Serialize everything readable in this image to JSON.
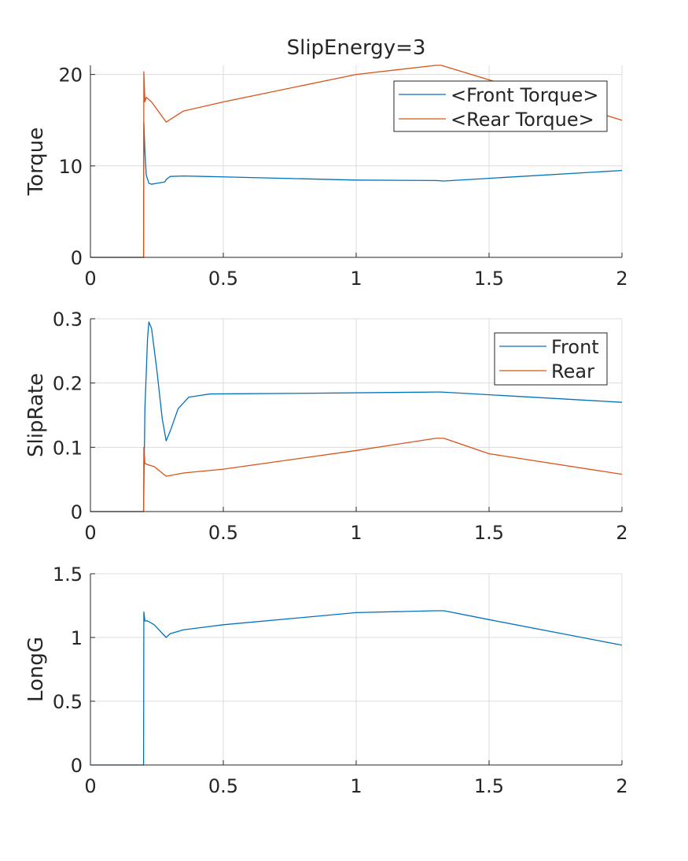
{
  "chart_data": [
    {
      "type": "line",
      "title": "SlipEnergy=3",
      "xlabel": "",
      "ylabel": "Torque",
      "xlim": [
        0,
        2
      ],
      "ylim": [
        0,
        21
      ],
      "xticks": [
        "0",
        "0.5",
        "1",
        "1.5",
        "2"
      ],
      "yticks": [
        "0",
        "10",
        "20"
      ],
      "grid": true,
      "legend_location": "top-right",
      "series": [
        {
          "name": "<Front Torque>",
          "color": "#0072BD",
          "x": [
            0,
            0.2,
            0.201,
            0.205,
            0.21,
            0.22,
            0.23,
            0.25,
            0.28,
            0.285,
            0.3,
            0.35,
            0.5,
            1.0,
            1.3,
            1.33,
            2.0
          ],
          "y": [
            0,
            0,
            14.8,
            11.5,
            9.0,
            8.1,
            8.0,
            8.1,
            8.25,
            8.5,
            8.85,
            8.9,
            8.8,
            8.45,
            8.4,
            8.35,
            9.5
          ]
        },
        {
          "name": "<Rear Torque>",
          "color": "#D95319",
          "x": [
            0,
            0.2,
            0.201,
            0.205,
            0.21,
            0.23,
            0.28,
            0.285,
            0.35,
            0.5,
            1.0,
            1.3,
            1.32,
            2.0
          ],
          "y": [
            0,
            0,
            20.3,
            17.0,
            17.5,
            17.0,
            15.0,
            14.8,
            16.0,
            17.0,
            20.0,
            21.0,
            21.0,
            15.0
          ]
        }
      ]
    },
    {
      "type": "line",
      "title": "",
      "xlabel": "",
      "ylabel": "SlipRate",
      "xlim": [
        0,
        2
      ],
      "ylim": [
        0,
        0.3
      ],
      "xticks": [
        "0",
        "0.5",
        "1",
        "1.5",
        "2"
      ],
      "yticks": [
        "0",
        "0.1",
        "0.2",
        "0.3"
      ],
      "grid": true,
      "legend_location": "top-right",
      "series": [
        {
          "name": "Front",
          "color": "#0072BD",
          "x": [
            0,
            0.2,
            0.205,
            0.215,
            0.22,
            0.23,
            0.25,
            0.27,
            0.285,
            0.3,
            0.33,
            0.37,
            0.45,
            0.8,
            1.3,
            1.32,
            2.0
          ],
          "y": [
            0,
            0,
            0.16,
            0.27,
            0.295,
            0.285,
            0.22,
            0.145,
            0.11,
            0.125,
            0.16,
            0.178,
            0.183,
            0.184,
            0.186,
            0.186,
            0.17
          ]
        },
        {
          "name": "Rear",
          "color": "#D95319",
          "x": [
            0,
            0.2,
            0.201,
            0.205,
            0.215,
            0.24,
            0.285,
            0.35,
            0.5,
            1.0,
            1.3,
            1.33,
            1.5,
            2.0
          ],
          "y": [
            0,
            0,
            0.1,
            0.075,
            0.073,
            0.07,
            0.055,
            0.06,
            0.066,
            0.095,
            0.114,
            0.114,
            0.09,
            0.058
          ]
        }
      ]
    },
    {
      "type": "line",
      "title": "",
      "xlabel": "",
      "ylabel": "LongG",
      "xlim": [
        0,
        2
      ],
      "ylim": [
        0,
        1.5
      ],
      "xticks": [
        "0",
        "0.5",
        "1",
        "1.5",
        "2"
      ],
      "yticks": [
        "0",
        "0.5",
        "1",
        "1.5"
      ],
      "grid": true,
      "legend_location": "none",
      "series": [
        {
          "name": "",
          "color": "#0072BD",
          "x": [
            0,
            0.2,
            0.201,
            0.205,
            0.215,
            0.24,
            0.285,
            0.3,
            0.35,
            0.5,
            1.0,
            1.3,
            1.33,
            1.5,
            2.0
          ],
          "y": [
            0,
            0,
            1.2,
            1.13,
            1.13,
            1.1,
            1.0,
            1.03,
            1.06,
            1.1,
            1.195,
            1.21,
            1.21,
            1.14,
            0.94
          ]
        }
      ]
    }
  ]
}
